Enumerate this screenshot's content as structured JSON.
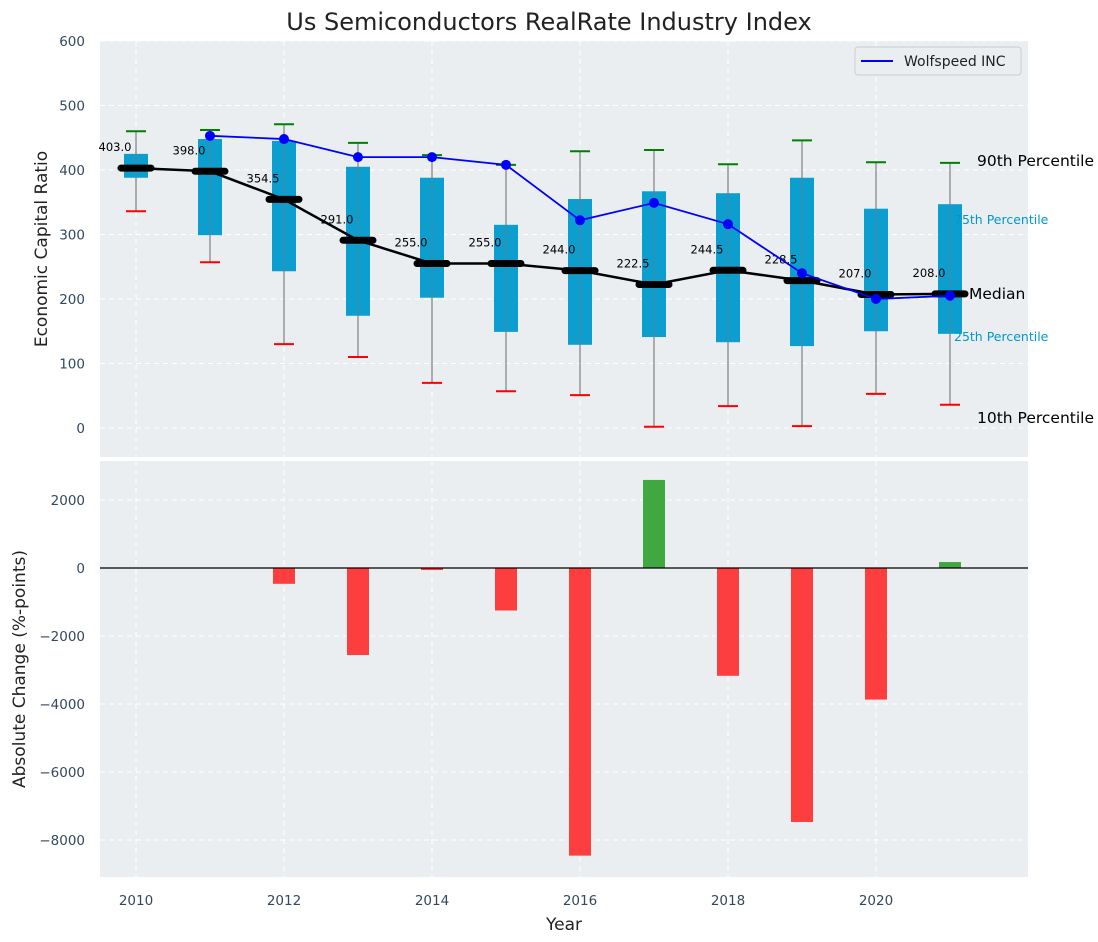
{
  "chart_data": [
    {
      "type": "box",
      "title": "Us Semiconductors RealRate Industry Index",
      "xlabel": "",
      "ylabel": "Economic Capital Ratio",
      "ylim": [
        0,
        600
      ],
      "yticks": [
        0,
        100,
        200,
        300,
        400,
        500,
        600
      ],
      "grid": true,
      "legend": {
        "position": "top-right",
        "entries": [
          {
            "label": "Wolfspeed INC",
            "color": "#0000ff"
          }
        ]
      },
      "x": [
        2010,
        2011,
        2012,
        2013,
        2014,
        2015,
        2016,
        2017,
        2018,
        2019,
        2020,
        2021
      ],
      "p10": [
        336,
        257,
        130,
        110,
        70,
        57,
        51,
        2,
        34,
        3,
        53,
        36
      ],
      "p25": [
        388,
        299,
        243,
        174,
        202,
        149,
        129,
        141,
        133,
        127,
        150,
        146
      ],
      "median": [
        403.0,
        398.0,
        354.5,
        291.0,
        255.0,
        255.0,
        244.0,
        222.5,
        244.5,
        228.5,
        207.0,
        208.0
      ],
      "median_labels": [
        "403.0",
        "398.0",
        "354.5",
        "291.0",
        "255.0",
        "255.0",
        "244.0",
        "222.5",
        "244.5",
        "228.5",
        "207.0",
        "208.0"
      ],
      "p75": [
        425,
        448,
        445,
        405,
        388,
        315,
        355,
        367,
        364,
        388,
        340,
        347
      ],
      "p90": [
        460,
        462,
        471,
        442,
        423,
        408,
        429,
        431,
        409,
        446,
        412,
        411
      ],
      "company": {
        "name": "Wolfspeed INC",
        "x": [
          2011,
          2012,
          2013,
          2014,
          2015,
          2016,
          2017,
          2018,
          2019,
          2020,
          2021
        ],
        "values": [
          453,
          448,
          420,
          420,
          408,
          322,
          349,
          316,
          240,
          200,
          205
        ]
      },
      "annotations": {
        "p90": "90th Percentile",
        "p75": "75th Percentile",
        "median": "Median",
        "p25": "25th Percentile",
        "p10": "10th Percentile"
      },
      "colors": {
        "box": "#0099cc",
        "p90": "#008000",
        "p10": "#ff0000",
        "median": "#000000",
        "company": "#0000ff",
        "whisker": "#808080",
        "background": "#eaeef0"
      }
    },
    {
      "type": "bar",
      "xlabel": "Year",
      "ylabel": "Absolute Change (%-points)",
      "ylim": [
        -9000,
        3000
      ],
      "yticks": [
        -8000,
        -6000,
        -4000,
        -2000,
        0,
        2000
      ],
      "ytick_labels": [
        "−8000",
        "−6000",
        "−4000",
        "−2000",
        "0",
        "2000"
      ],
      "xlim": [
        2009.5,
        2022
      ],
      "xticks": [
        2010,
        2012,
        2014,
        2016,
        2018,
        2020
      ],
      "grid": true,
      "x": [
        2012,
        2013,
        2014,
        2015,
        2016,
        2017,
        2018,
        2019,
        2020,
        2021
      ],
      "values": [
        -465,
        -2560,
        -60,
        -1250,
        -8460,
        2590,
        -3170,
        -7470,
        -3870,
        175
      ],
      "colors": {
        "positive": "#2ca02c",
        "negative": "#ff2a2a"
      }
    }
  ]
}
